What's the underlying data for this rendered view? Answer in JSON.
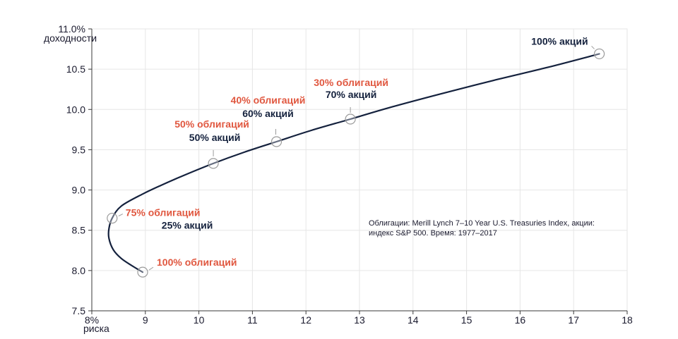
{
  "chart_data": {
    "type": "line",
    "title": "",
    "xlabel": "риска",
    "ylabel": "доходности",
    "xlim": [
      8,
      18
    ],
    "ylim": [
      7.5,
      11.0
    ],
    "x_ticks": [
      "8%",
      "9",
      "10",
      "11",
      "12",
      "13",
      "14",
      "15",
      "16",
      "17",
      "18"
    ],
    "y_ticks": [
      "7.5",
      "8.0",
      "8.5",
      "9.0",
      "9.5",
      "10.0",
      "10.5",
      "11.0%"
    ],
    "grid": true,
    "curve": [
      {
        "x": 8.95,
        "y": 7.98
      },
      {
        "x": 8.75,
        "y": 8.06
      },
      {
        "x": 8.55,
        "y": 8.15
      },
      {
        "x": 8.4,
        "y": 8.26
      },
      {
        "x": 8.32,
        "y": 8.4
      },
      {
        "x": 8.32,
        "y": 8.52
      },
      {
        "x": 8.38,
        "y": 8.65
      },
      {
        "x": 8.55,
        "y": 8.8
      },
      {
        "x": 8.95,
        "y": 8.95
      },
      {
        "x": 9.3,
        "y": 9.06
      },
      {
        "x": 9.75,
        "y": 9.19
      },
      {
        "x": 10.27,
        "y": 9.33
      },
      {
        "x": 10.85,
        "y": 9.47
      },
      {
        "x": 11.45,
        "y": 9.6
      },
      {
        "x": 12.1,
        "y": 9.74
      },
      {
        "x": 12.83,
        "y": 9.88
      },
      {
        "x": 13.6,
        "y": 10.03
      },
      {
        "x": 14.5,
        "y": 10.19
      },
      {
        "x": 15.5,
        "y": 10.36
      },
      {
        "x": 16.5,
        "y": 10.52
      },
      {
        "x": 17.48,
        "y": 10.69
      }
    ],
    "markers": [
      {
        "x": 8.95,
        "y": 7.98,
        "bonds": "100% облигаций",
        "stocks": ""
      },
      {
        "x": 8.38,
        "y": 8.65,
        "bonds": "75% облигаций",
        "stocks": "25% акций"
      },
      {
        "x": 10.27,
        "y": 9.33,
        "bonds": "50% облигаций",
        "stocks": "50% акций"
      },
      {
        "x": 11.45,
        "y": 9.6,
        "bonds": "40% облигаций",
        "stocks": "60% акций"
      },
      {
        "x": 12.83,
        "y": 9.88,
        "bonds": "30% облигаций",
        "stocks": "70% акций"
      },
      {
        "x": 17.48,
        "y": 10.69,
        "bonds": "",
        "stocks": "100% акций"
      }
    ],
    "source_note": [
      "Облигации: Merill Lynch 7–10 Year U.S. Treasuries Index, акции:",
      "индекс S&P 500. Время: 1977–2017"
    ]
  },
  "colors": {
    "line": "#14213d",
    "bonds_text": "#e0573f",
    "stocks_text": "#14213d",
    "marker_stroke": "#9a9a9a",
    "grid": "#e6e6e6",
    "axis": "#3a3a3a"
  }
}
